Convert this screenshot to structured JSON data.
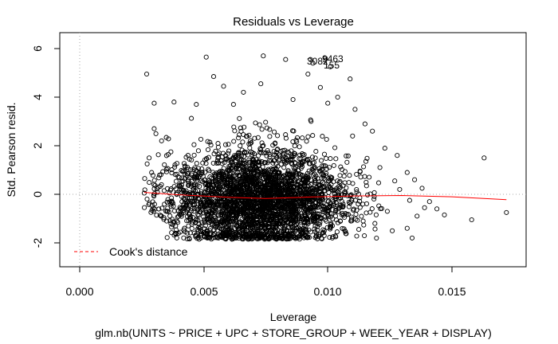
{
  "chart_data": {
    "type": "scatter",
    "title": "Residuals vs Leverage",
    "xlabel": "Leverage",
    "ylabel": "Std. Pearson resid.",
    "subtitle": "glm.nb(UNITS ~ PRICE + UPC + STORE_GROUP + WEEK_YEAR + DISPLAY)",
    "xlim": [
      -0.0007,
      0.0181
    ],
    "ylim": [
      -2.9,
      6.5
    ],
    "x_ticks": [
      0.0,
      0.005,
      0.01,
      0.015
    ],
    "x_tick_labels": [
      "0.000",
      "0.005",
      "0.010",
      "0.015"
    ],
    "y_ticks": [
      -2,
      0,
      2,
      4,
      6
    ],
    "y_tick_labels": [
      "-2",
      "0",
      "2",
      "4",
      "6"
    ],
    "reference_lines": {
      "x": 0,
      "y": 0,
      "style": "dotted",
      "color": "#aaaaaa"
    },
    "legend": {
      "position": "bottom-left",
      "entries": [
        {
          "label": "Cook's distance",
          "color": "#ff0000",
          "style": "dashed"
        }
      ]
    },
    "outlier_labels": [
      {
        "text": "9463",
        "x": 0.01,
        "y": 5.6
      },
      {
        "text": "3082",
        "x": 0.0095,
        "y": 5.4
      },
      {
        "text": "155",
        "x": 0.0102,
        "y": 5.25
      }
    ],
    "scatter_points": [
      {
        "x": 0.0027,
        "y": 4.95
      },
      {
        "x": 0.0051,
        "y": 5.65
      },
      {
        "x": 0.0074,
        "y": 5.7
      },
      {
        "x": 0.0083,
        "y": 5.55
      },
      {
        "x": 0.0093,
        "y": 5.55
      },
      {
        "x": 0.0099,
        "y": 5.6
      },
      {
        "x": 0.0094,
        "y": 5.4
      },
      {
        "x": 0.0101,
        "y": 5.25
      },
      {
        "x": 0.0109,
        "y": 4.75
      },
      {
        "x": 0.0054,
        "y": 4.85
      },
      {
        "x": 0.0058,
        "y": 4.45
      },
      {
        "x": 0.0073,
        "y": 4.55
      },
      {
        "x": 0.0092,
        "y": 4.95
      },
      {
        "x": 0.0097,
        "y": 4.4
      },
      {
        "x": 0.0104,
        "y": 4.0
      },
      {
        "x": 0.003,
        "y": 3.75
      },
      {
        "x": 0.0038,
        "y": 3.8
      },
      {
        "x": 0.0047,
        "y": 3.7
      },
      {
        "x": 0.0062,
        "y": 3.7
      },
      {
        "x": 0.0066,
        "y": 4.2
      },
      {
        "x": 0.0086,
        "y": 3.9
      },
      {
        "x": 0.01,
        "y": 3.75
      },
      {
        "x": 0.0111,
        "y": 3.5
      },
      {
        "x": 0.0115,
        "y": 2.9
      },
      {
        "x": 0.0118,
        "y": 2.6
      },
      {
        "x": 0.011,
        "y": 2.4
      },
      {
        "x": 0.0123,
        "y": 1.9
      },
      {
        "x": 0.0128,
        "y": 1.6
      },
      {
        "x": 0.0121,
        "y": 1.1
      },
      {
        "x": 0.0132,
        "y": 0.9
      },
      {
        "x": 0.0127,
        "y": 0.55
      },
      {
        "x": 0.0135,
        "y": 0.6
      },
      {
        "x": 0.0138,
        "y": 0.25
      },
      {
        "x": 0.0133,
        "y": -0.25
      },
      {
        "x": 0.0139,
        "y": -0.55
      },
      {
        "x": 0.0136,
        "y": -0.9
      },
      {
        "x": 0.0132,
        "y": -1.4
      },
      {
        "x": 0.0134,
        "y": -1.8
      },
      {
        "x": 0.0126,
        "y": -1.5
      },
      {
        "x": 0.0141,
        "y": -0.3
      },
      {
        "x": 0.0144,
        "y": -0.6
      },
      {
        "x": 0.0147,
        "y": -0.85
      },
      {
        "x": 0.0158,
        "y": -1.05
      },
      {
        "x": 0.0163,
        "y": 1.5
      },
      {
        "x": 0.0172,
        "y": -0.75
      },
      {
        "x": 0.0119,
        "y": -1.2
      },
      {
        "x": 0.0124,
        "y": -0.7
      },
      {
        "x": 0.0129,
        "y": 0.2
      },
      {
        "x": 0.003,
        "y": 2.7
      },
      {
        "x": 0.0033,
        "y": 2.2
      },
      {
        "x": 0.0028,
        "y": 1.5
      },
      {
        "x": 0.0026,
        "y": 0.05
      },
      {
        "x": 0.0029,
        "y": 0.9
      }
    ]
  }
}
